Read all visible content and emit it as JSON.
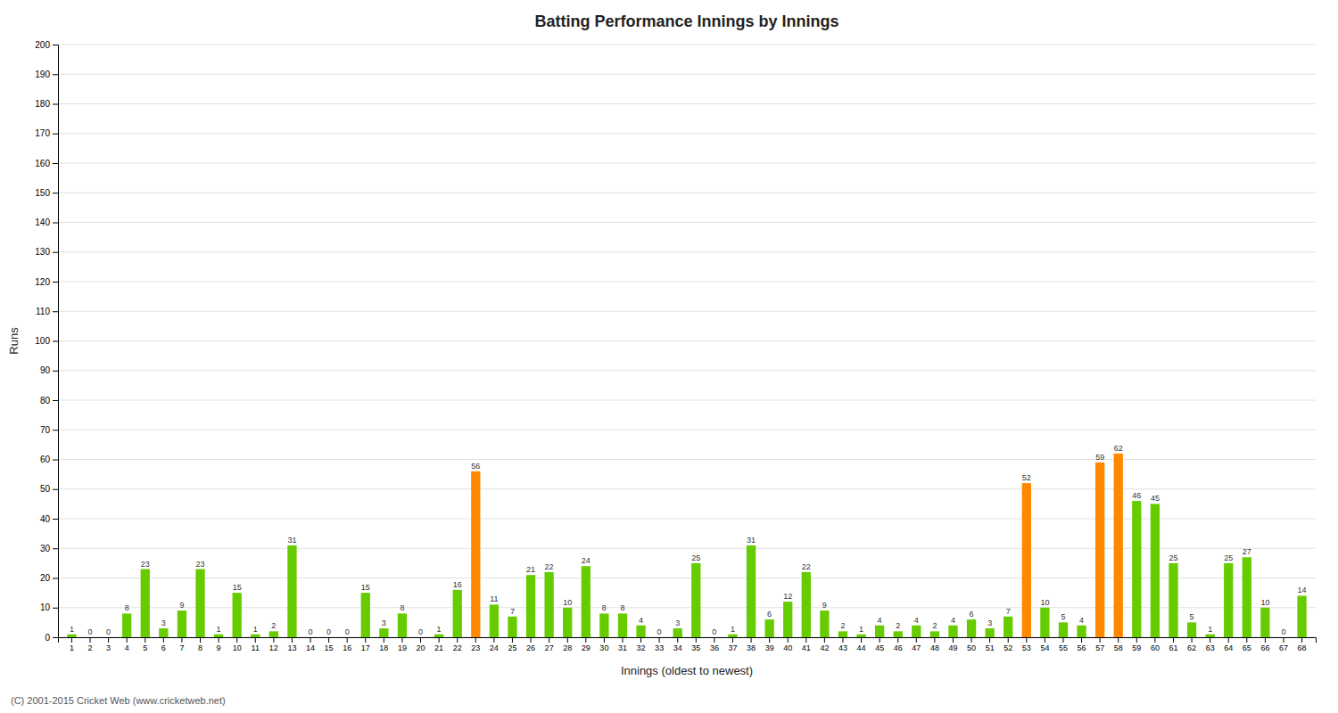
{
  "chart_data": {
    "type": "bar",
    "title": "Batting Performance Innings by Innings",
    "xlabel": "Innings (oldest to newest)",
    "ylabel": "Runs",
    "categories": [
      "1",
      "2",
      "3",
      "4",
      "5",
      "6",
      "7",
      "8",
      "9",
      "10",
      "11",
      "12",
      "13",
      "14",
      "15",
      "16",
      "17",
      "18",
      "19",
      "20",
      "21",
      "22",
      "23",
      "24",
      "25",
      "26",
      "27",
      "28",
      "29",
      "30",
      "31",
      "32",
      "33",
      "34",
      "35",
      "36",
      "37",
      "38",
      "39",
      "40",
      "41",
      "42",
      "43",
      "44",
      "45",
      "46",
      "47",
      "48",
      "49",
      "50",
      "51",
      "52",
      "53",
      "54",
      "55",
      "56",
      "57",
      "58",
      "59",
      "60",
      "61",
      "62",
      "63",
      "64",
      "65",
      "66",
      "67",
      "68"
    ],
    "values": [
      1,
      0,
      0,
      8,
      23,
      3,
      9,
      23,
      1,
      15,
      1,
      2,
      31,
      0,
      0,
      0,
      15,
      3,
      8,
      0,
      1,
      16,
      56,
      11,
      7,
      21,
      22,
      10,
      24,
      8,
      8,
      4,
      0,
      3,
      25,
      0,
      1,
      31,
      6,
      12,
      22,
      9,
      2,
      1,
      4,
      2,
      4,
      2,
      4,
      6,
      3,
      7,
      52,
      10,
      5,
      4,
      59,
      62,
      46,
      45,
      25,
      5,
      1,
      25,
      27,
      10,
      0,
      14
    ],
    "colors": [
      "#66cc00",
      "#66cc00",
      "#66cc00",
      "#66cc00",
      "#66cc00",
      "#66cc00",
      "#66cc00",
      "#66cc00",
      "#66cc00",
      "#66cc00",
      "#66cc00",
      "#66cc00",
      "#66cc00",
      "#66cc00",
      "#66cc00",
      "#66cc00",
      "#66cc00",
      "#66cc00",
      "#66cc00",
      "#66cc00",
      "#66cc00",
      "#66cc00",
      "#ff8800",
      "#66cc00",
      "#66cc00",
      "#66cc00",
      "#66cc00",
      "#66cc00",
      "#66cc00",
      "#66cc00",
      "#66cc00",
      "#66cc00",
      "#66cc00",
      "#66cc00",
      "#66cc00",
      "#66cc00",
      "#66cc00",
      "#66cc00",
      "#66cc00",
      "#66cc00",
      "#66cc00",
      "#66cc00",
      "#66cc00",
      "#66cc00",
      "#66cc00",
      "#66cc00",
      "#66cc00",
      "#66cc00",
      "#66cc00",
      "#66cc00",
      "#66cc00",
      "#66cc00",
      "#ff8800",
      "#66cc00",
      "#66cc00",
      "#66cc00",
      "#ff8800",
      "#ff8800",
      "#66cc00",
      "#66cc00",
      "#66cc00",
      "#66cc00",
      "#66cc00",
      "#66cc00",
      "#66cc00",
      "#66cc00",
      "#66cc00",
      "#66cc00"
    ],
    "ylim": [
      0,
      200
    ],
    "yticks": [
      0,
      10,
      20,
      30,
      40,
      50,
      60,
      70,
      80,
      90,
      100,
      110,
      120,
      130,
      140,
      150,
      160,
      170,
      180,
      190,
      200
    ],
    "grid": true,
    "data_labels": true,
    "annotations": [
      "(C) 2001-2015 Cricket Web (www.cricketweb.net)"
    ]
  }
}
